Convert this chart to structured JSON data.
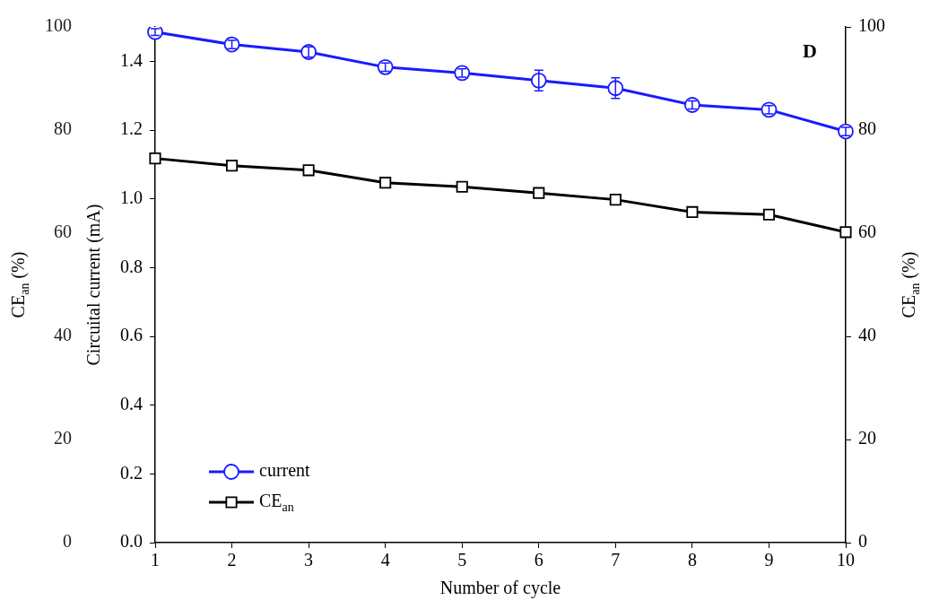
{
  "chart_data": {
    "type": "line",
    "xlabel": "Number of cycle",
    "ylabel": "Circuital current (mA)",
    "y2label": "CE$_{an}$ (%)",
    "y3label": "CE$_{an}$ (%)",
    "annotations": [
      "D"
    ],
    "categories": [
      "1",
      "2",
      "3",
      "4",
      "5",
      "6",
      "7",
      "8",
      "9",
      "10"
    ],
    "series": [
      {
        "name": "current",
        "color": "#1a1aff",
        "marker": "circle",
        "values": [
          1.485,
          1.449,
          1.427,
          1.383,
          1.366,
          1.344,
          1.322,
          1.273,
          1.259,
          1.196
        ],
        "errors": [
          0.01,
          0.012,
          0.015,
          0.012,
          0.012,
          0.03,
          0.03,
          0.012,
          0.012,
          0.012
        ]
      },
      {
        "name": "CE$_{an}$",
        "color": "#000000",
        "marker": "square",
        "axis": "y2",
        "values": [
          74.5,
          73.1,
          72.2,
          69.8,
          69.0,
          67.8,
          66.5,
          64.1,
          63.6,
          60.2
        ]
      }
    ],
    "ylim": [
      0,
      1.5
    ],
    "yticks": [
      {
        "value": 0,
        "label": "0.0"
      },
      {
        "value": 0.2,
        "label": "0.2"
      },
      {
        "value": 0.4,
        "label": "0.4"
      },
      {
        "value": 0.6,
        "label": "0.6"
      },
      {
        "value": 0.8,
        "label": "0.8"
      },
      {
        "value": 1.0,
        "label": "1.0"
      },
      {
        "value": 1.2,
        "label": "1.2"
      },
      {
        "value": 1.4,
        "label": "1.4"
      }
    ],
    "y2lim": [
      0,
      100
    ],
    "y2ticks": [
      0,
      20,
      40,
      60,
      80,
      100
    ],
    "y3lim": [
      0,
      100
    ],
    "y3ticks": [
      0,
      20,
      40,
      60,
      80,
      100
    ],
    "legend": "bottom left",
    "grid": false
  }
}
